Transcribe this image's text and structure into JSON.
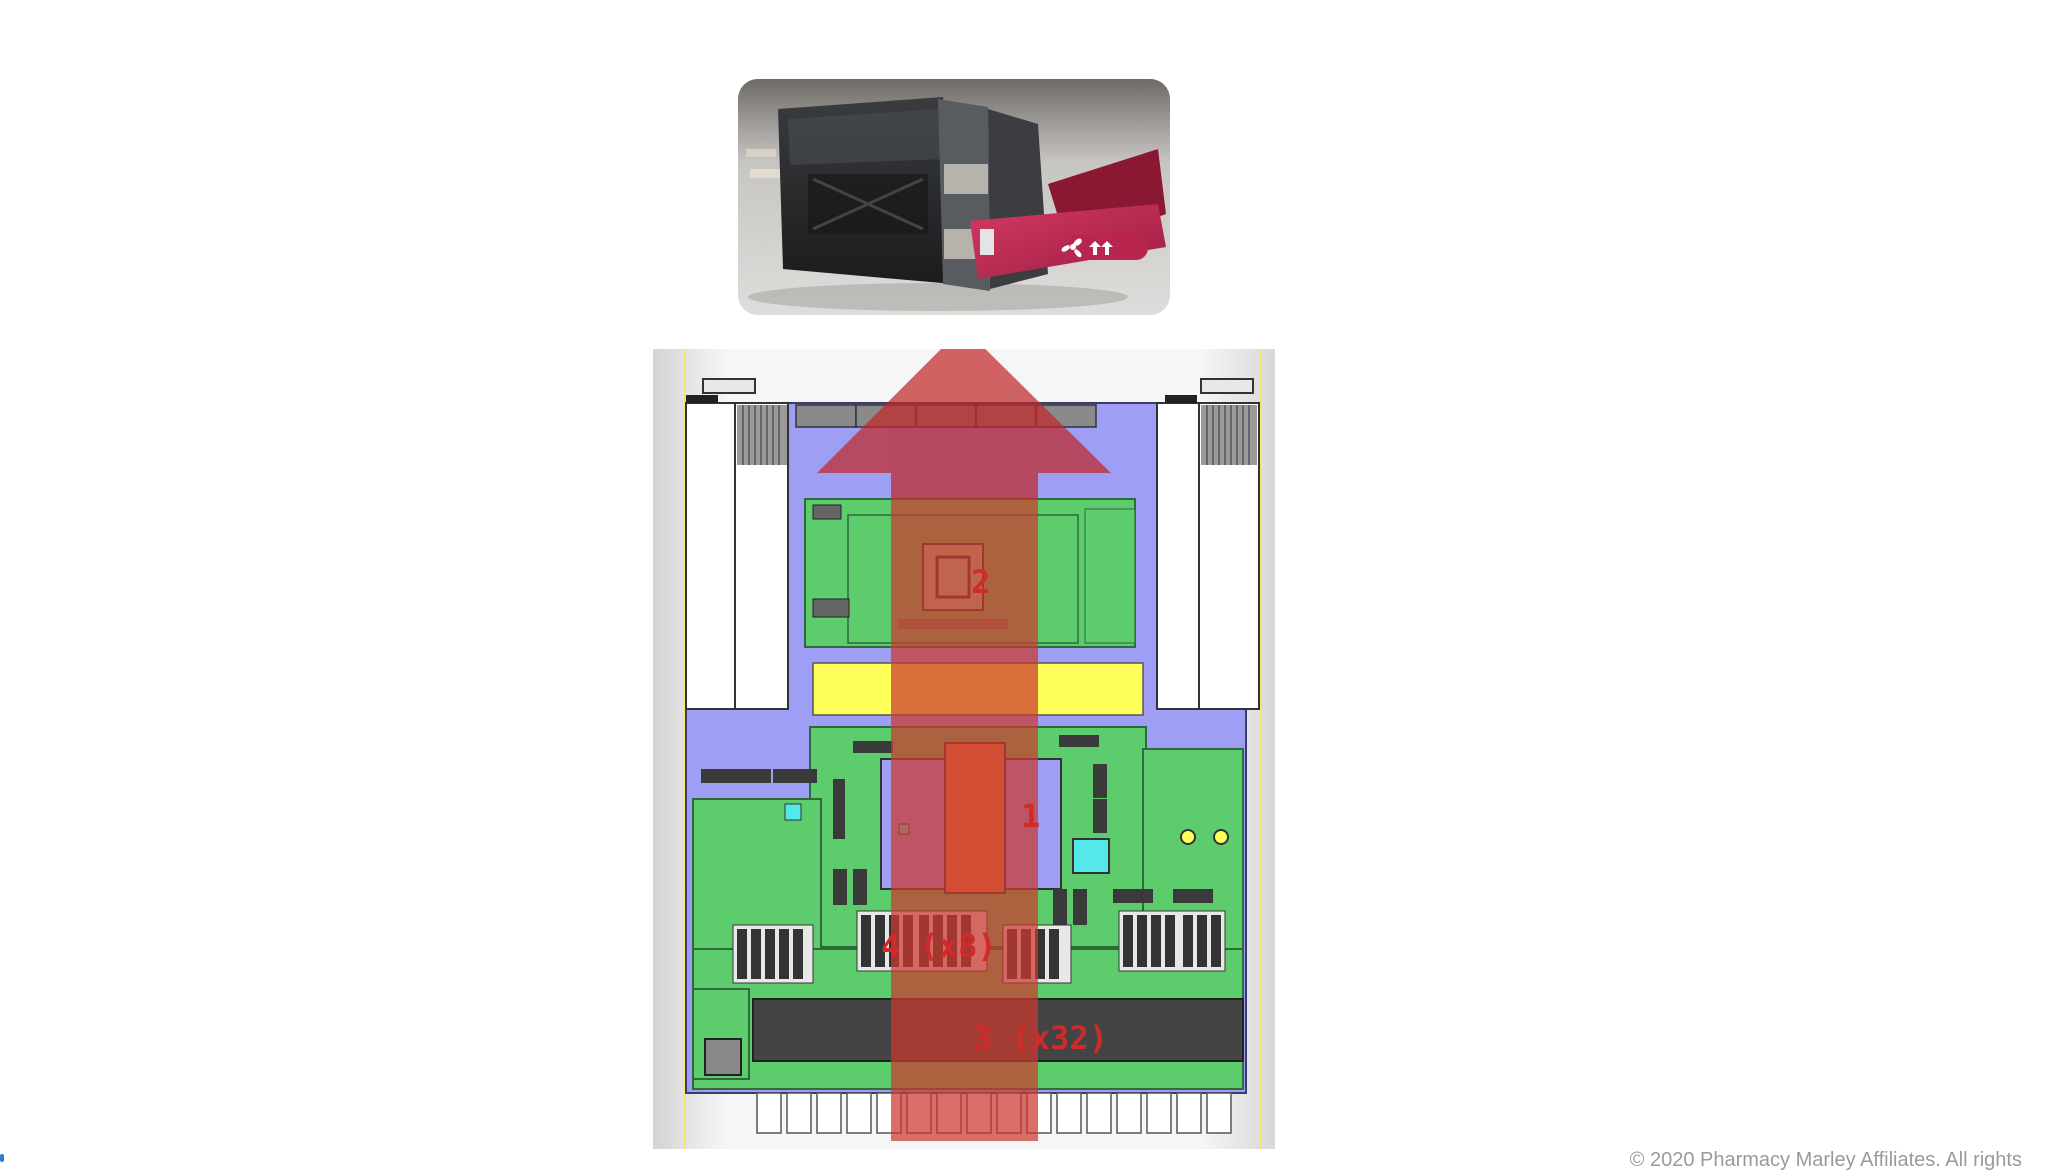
{
  "diagram": {
    "callouts": {
      "label_1": "1",
      "label_2": "2",
      "label_3": "3 (x32)",
      "label_4": "4 (x8)"
    },
    "photo": {
      "icon": "fan-icon"
    },
    "airflow": {
      "icon": "up-arrow-icon",
      "color": "#c0282a"
    },
    "colors": {
      "board": "#5ccc6c",
      "chassis": "#9e9ef5",
      "heatsink": "#ffff5a",
      "connector": "#55e8e8",
      "handle": "#c02a55"
    }
  },
  "footer": {
    "text": "© 2020 Pharmacy Marley Affiliates. All rights"
  }
}
